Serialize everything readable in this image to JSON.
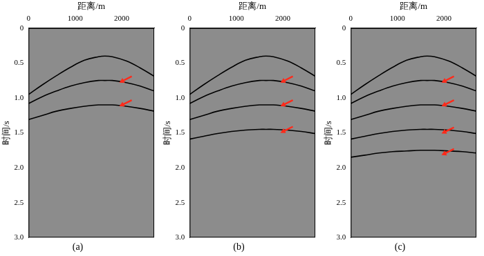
{
  "chart_data": [
    {
      "type": "line",
      "title": "(a)",
      "x_label": "距离/m",
      "y_label": "时间/s",
      "x": [
        0,
        300,
        600,
        900,
        1200,
        1500,
        1640,
        1800,
        2100,
        2400,
        2700
      ],
      "series": [
        {
          "color": "#000000",
          "values": [
            0.95,
            0.81,
            0.68,
            0.56,
            0.46,
            0.41,
            0.4,
            0.41,
            0.47,
            0.57,
            0.69
          ]
        },
        {
          "color": "#000000",
          "values": [
            1.08,
            0.98,
            0.9,
            0.83,
            0.78,
            0.75,
            0.75,
            0.75,
            0.78,
            0.83,
            0.9
          ]
        },
        {
          "color": "#000000",
          "values": [
            1.31,
            1.25,
            1.19,
            1.15,
            1.12,
            1.1,
            1.1,
            1.1,
            1.12,
            1.15,
            1.19
          ]
        }
      ],
      "xlim": [
        0,
        2700
      ],
      "xticks": [
        0,
        1000,
        2000
      ],
      "ylim": [
        0,
        3
      ],
      "yticks": [
        0,
        0.5,
        {
          "value": 1,
          "label": "1.0"
        },
        1.5,
        {
          "value": 2,
          "label": "2.0"
        },
        2.5,
        {
          "value": 3,
          "label": "3.0"
        }
      ],
      "grid": false,
      "arrows": {
        "color": "#ff2a1a",
        "points": [
          {
            "x": 1950,
            "y": 0.78
          },
          {
            "x": 1950,
            "y": 1.12
          }
        ]
      }
    },
    {
      "type": "line",
      "title": "(b)",
      "x_label": "距离/m",
      "y_label": "时间/s",
      "x": [
        0,
        300,
        600,
        900,
        1200,
        1500,
        1640,
        1800,
        2100,
        2400,
        2700
      ],
      "series": [
        {
          "color": "#000000",
          "values": [
            0.95,
            0.81,
            0.68,
            0.56,
            0.46,
            0.41,
            0.4,
            0.41,
            0.47,
            0.57,
            0.69
          ]
        },
        {
          "color": "#000000",
          "values": [
            1.08,
            0.98,
            0.9,
            0.83,
            0.78,
            0.75,
            0.75,
            0.75,
            0.78,
            0.83,
            0.9
          ]
        },
        {
          "color": "#000000",
          "values": [
            1.31,
            1.25,
            1.19,
            1.15,
            1.12,
            1.1,
            1.1,
            1.1,
            1.12,
            1.15,
            1.19
          ]
        },
        {
          "color": "#000000",
          "values": [
            1.59,
            1.55,
            1.51,
            1.48,
            1.46,
            1.45,
            1.45,
            1.45,
            1.46,
            1.48,
            1.51
          ]
        }
      ],
      "xlim": [
        0,
        2700
      ],
      "xticks": [
        0,
        1000,
        2000
      ],
      "ylim": [
        0,
        3
      ],
      "yticks": [
        0,
        0.5,
        {
          "value": 1,
          "label": "1.0"
        },
        1.5,
        {
          "value": 2,
          "label": "2.0"
        },
        2.5,
        {
          "value": 3,
          "label": "3.0"
        }
      ],
      "grid": false,
      "arrows": {
        "color": "#ff2a1a",
        "points": [
          {
            "x": 1950,
            "y": 0.78
          },
          {
            "x": 1950,
            "y": 1.12
          },
          {
            "x": 1950,
            "y": 1.5
          }
        ]
      }
    },
    {
      "type": "line",
      "title": "(c)",
      "x_label": "距离/m",
      "y_label": "时间/s",
      "x": [
        0,
        300,
        600,
        900,
        1200,
        1500,
        1640,
        1800,
        2100,
        2400,
        2700
      ],
      "series": [
        {
          "color": "#000000",
          "values": [
            0.95,
            0.81,
            0.68,
            0.56,
            0.46,
            0.41,
            0.4,
            0.41,
            0.47,
            0.57,
            0.69
          ]
        },
        {
          "color": "#000000",
          "values": [
            1.08,
            0.98,
            0.9,
            0.83,
            0.78,
            0.75,
            0.75,
            0.75,
            0.78,
            0.83,
            0.9
          ]
        },
        {
          "color": "#000000",
          "values": [
            1.31,
            1.25,
            1.19,
            1.15,
            1.12,
            1.1,
            1.1,
            1.1,
            1.12,
            1.15,
            1.19
          ]
        },
        {
          "color": "#000000",
          "values": [
            1.59,
            1.55,
            1.51,
            1.48,
            1.46,
            1.45,
            1.45,
            1.45,
            1.46,
            1.48,
            1.51
          ]
        },
        {
          "color": "#000000",
          "values": [
            1.85,
            1.82,
            1.79,
            1.77,
            1.76,
            1.75,
            1.75,
            1.75,
            1.76,
            1.77,
            1.79
          ]
        }
      ],
      "xlim": [
        0,
        2700
      ],
      "xticks": [
        0,
        1000,
        2000
      ],
      "ylim": [
        0,
        3
      ],
      "yticks": [
        0,
        0.5,
        {
          "value": 1,
          "label": "1.0"
        },
        1.5,
        {
          "value": 2,
          "label": "2.0"
        },
        2.5,
        {
          "value": 3,
          "label": "3.0"
        }
      ],
      "grid": false,
      "arrows": {
        "color": "#ff2a1a",
        "points": [
          {
            "x": 1950,
            "y": 0.78
          },
          {
            "x": 1950,
            "y": 1.12
          },
          {
            "x": 1950,
            "y": 1.51
          },
          {
            "x": 1950,
            "y": 1.82
          }
        ]
      }
    }
  ]
}
